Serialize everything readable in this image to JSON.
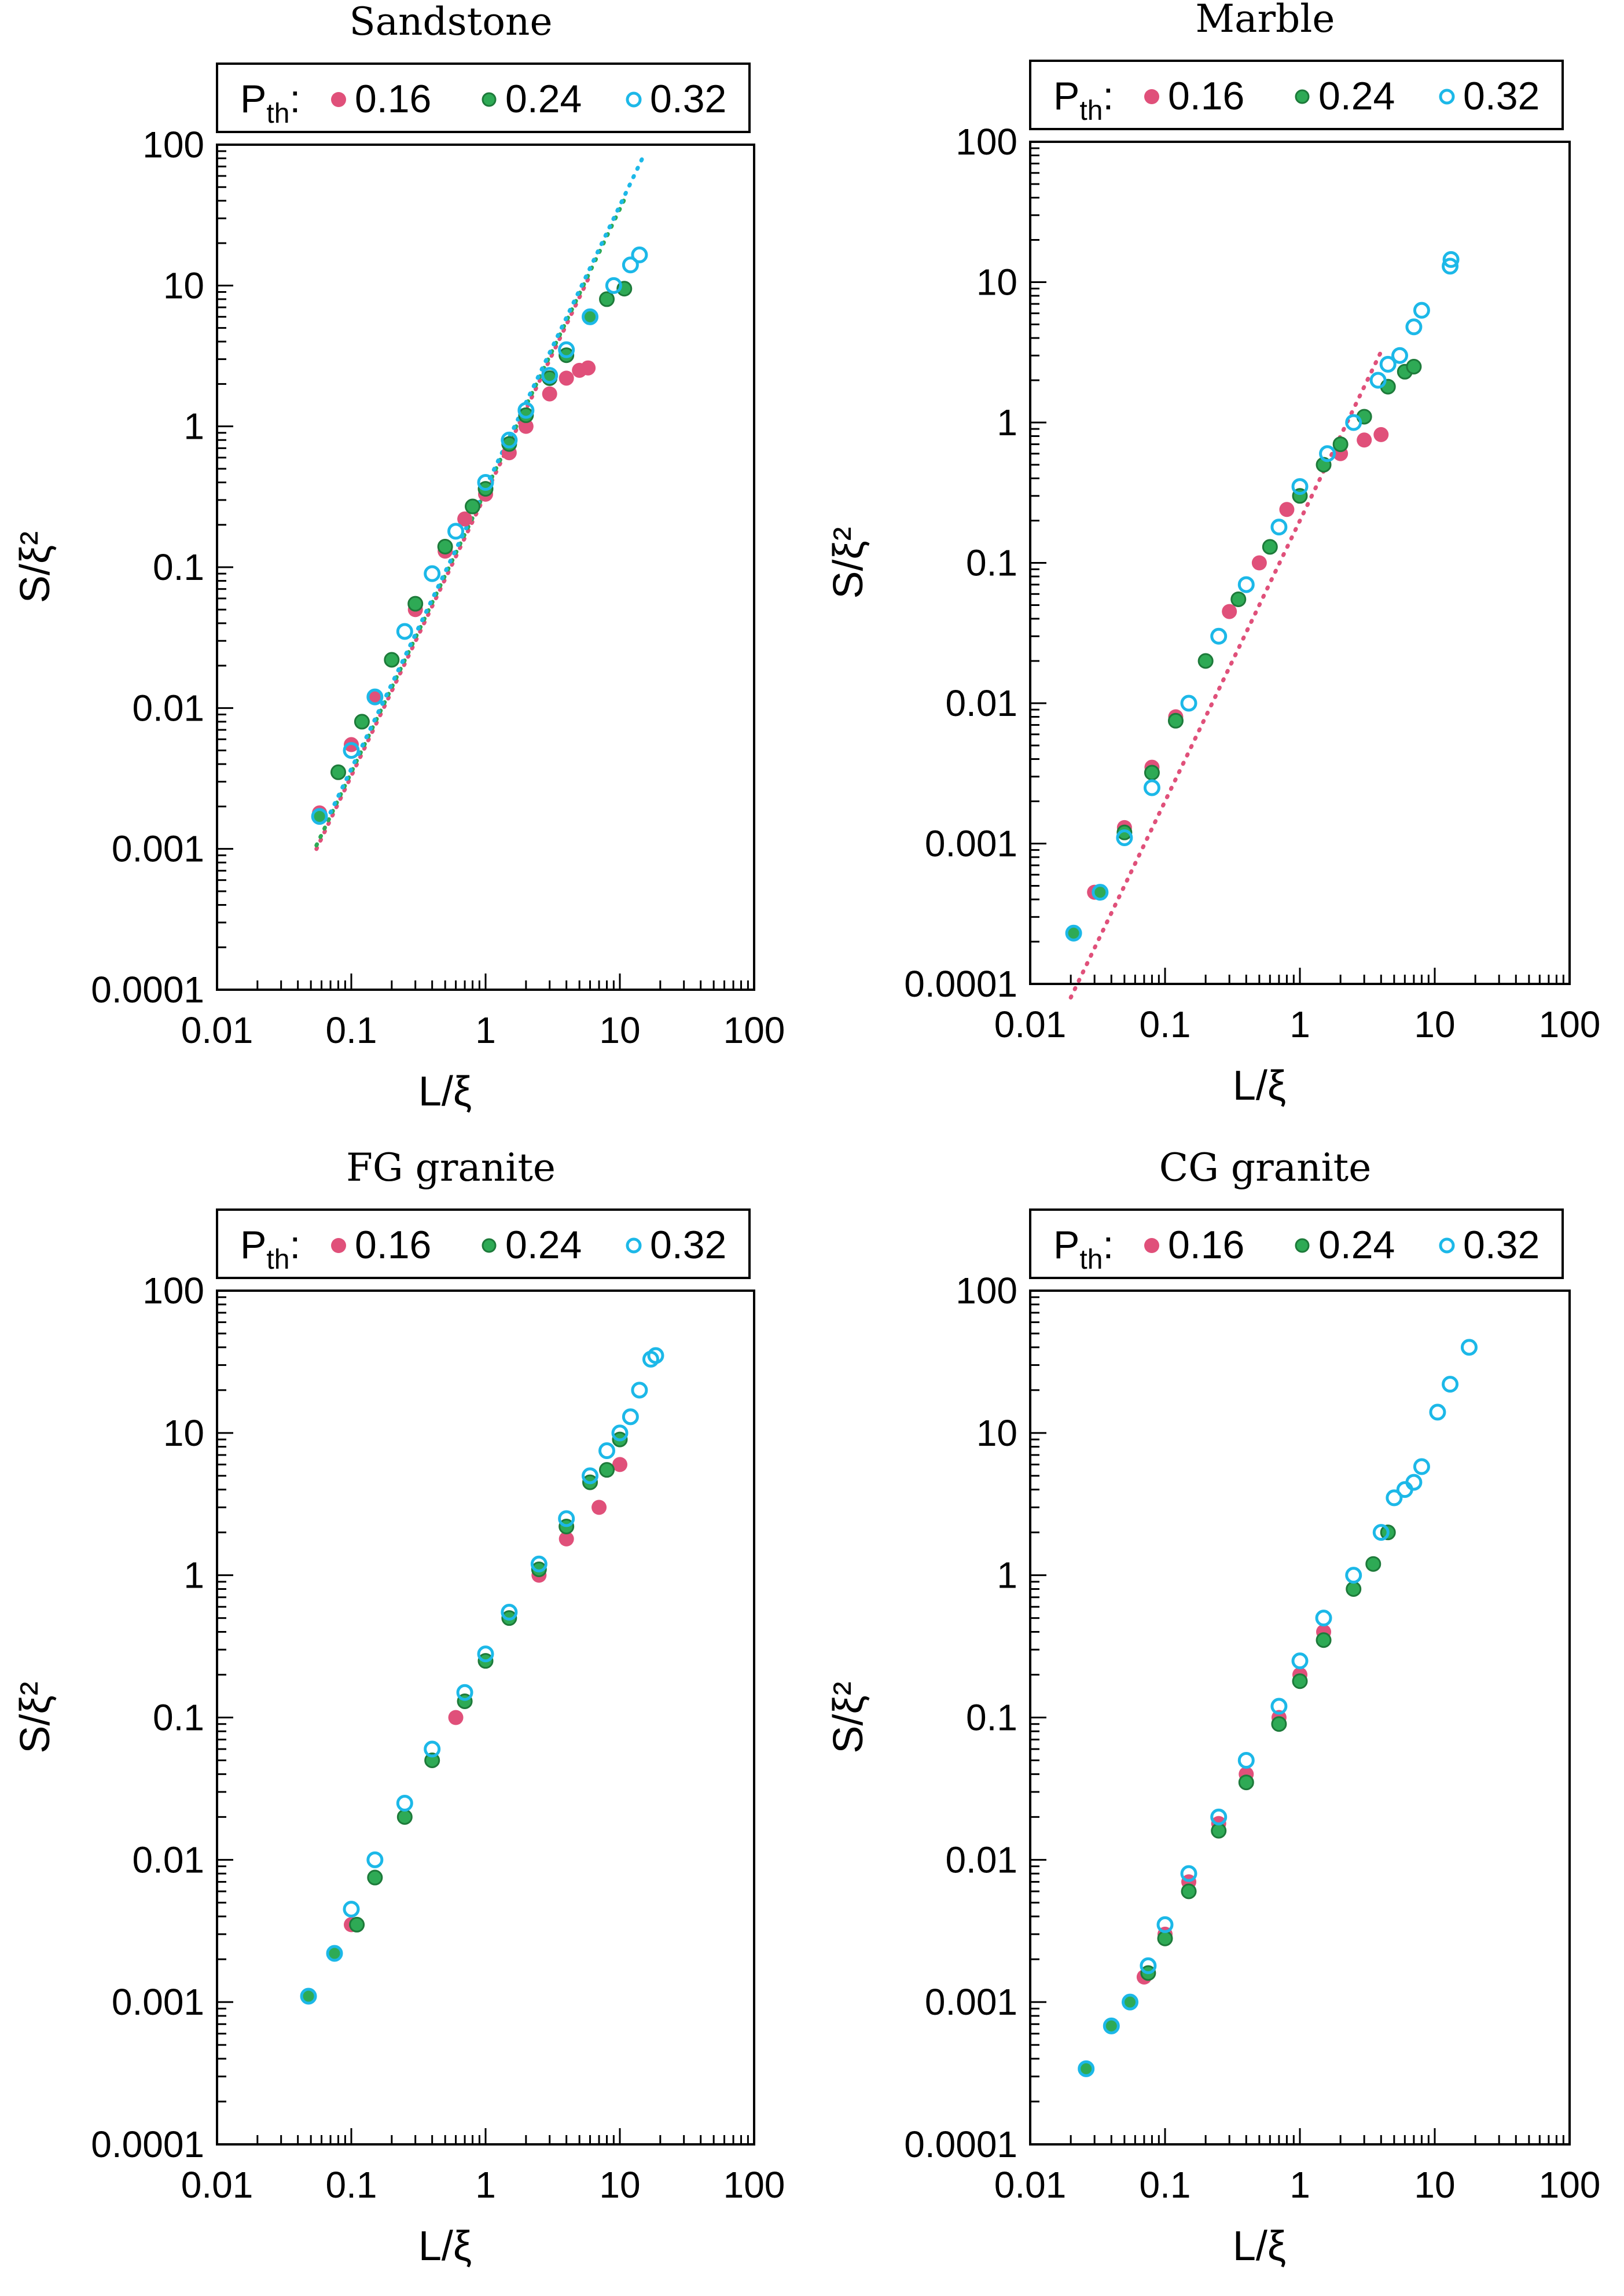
{
  "chart_data": [
    {
      "type": "scatter",
      "title": "Sandstone",
      "xlabel": "L/ξ",
      "ylabel": "S/ξ²",
      "xscale": "log",
      "yscale": "log",
      "xlim": [
        0.01,
        100
      ],
      "ylim": [
        0.0001,
        100
      ],
      "x_tick_labels": [
        "0.01",
        "0.1",
        "1",
        "10",
        "100"
      ],
      "y_tick_labels": [
        "0.0001",
        "0.001",
        "0.01",
        "0.1",
        "1",
        "10",
        "100"
      ],
      "legend": {
        "prefix": "P",
        "prefix_sub": "th",
        "prefix_suffix": ":",
        "entries": [
          "0.16",
          "0.24",
          "0.32"
        ],
        "position": "top"
      },
      "series": [
        {
          "name": "0.16",
          "color": "#e0507a",
          "marker": "filled",
          "fit_line": {
            "x0": 0.055,
            "x1": 6.0,
            "exponent": 2.0,
            "y_at_1": 0.33
          },
          "x": [
            0.058,
            0.08,
            0.1,
            0.15,
            0.2,
            0.3,
            0.5,
            0.7,
            1.0,
            1.5,
            2.0,
            3.0,
            4.0,
            5.0,
            5.8
          ],
          "y": [
            0.0018,
            0.0035,
            0.0055,
            0.012,
            0.022,
            0.05,
            0.13,
            0.22,
            0.33,
            0.65,
            1.0,
            1.7,
            2.2,
            2.5,
            2.6
          ]
        },
        {
          "name": "0.24",
          "color": "#2eaa55",
          "marker": "filled-edged",
          "fit_line": {
            "x0": 0.055,
            "x1": 11.0,
            "exponent": 2.0,
            "y_at_1": 0.35
          },
          "x": [
            0.058,
            0.08,
            0.12,
            0.2,
            0.3,
            0.5,
            0.8,
            1.0,
            1.5,
            2.0,
            3.0,
            4.0,
            6.0,
            8.0,
            10.8
          ],
          "y": [
            0.0017,
            0.0035,
            0.008,
            0.022,
            0.055,
            0.14,
            0.27,
            0.36,
            0.75,
            1.2,
            2.2,
            3.2,
            6.0,
            8.0,
            9.5
          ]
        },
        {
          "name": "0.32",
          "color": "#1cb8e8",
          "marker": "open",
          "fit_line": {
            "x0": 0.07,
            "x1": 15.0,
            "exponent": 2.0,
            "y_at_1": 0.37
          },
          "x": [
            0.058,
            0.1,
            0.15,
            0.25,
            0.4,
            0.6,
            1.0,
            1.5,
            2.0,
            3.0,
            4.0,
            6.0,
            9.0,
            12.0,
            14.0
          ],
          "y": [
            0.0017,
            0.005,
            0.012,
            0.035,
            0.09,
            0.18,
            0.4,
            0.8,
            1.3,
            2.3,
            3.5,
            6.0,
            10.0,
            14.0,
            16.5
          ]
        }
      ]
    },
    {
      "type": "scatter",
      "title": "Marble",
      "xlabel": "L/ξ",
      "ylabel": "S/ξ²",
      "xscale": "log",
      "yscale": "log",
      "xlim": [
        0.01,
        100
      ],
      "ylim": [
        0.0001,
        100
      ],
      "x_tick_labels": [
        "0.01",
        "0.1",
        "1",
        "10",
        "100"
      ],
      "y_tick_labels": [
        "0.0001",
        "0.001",
        "0.01",
        "0.1",
        "1",
        "10",
        "100"
      ],
      "legend": {
        "prefix": "P",
        "prefix_sub": "th",
        "prefix_suffix": ":",
        "entries": [
          "0.16",
          "0.24",
          "0.32"
        ],
        "position": "top"
      },
      "series": [
        {
          "name": "0.16",
          "color": "#e0507a",
          "marker": "filled",
          "fit_line": {
            "x0": 0.02,
            "x1": 4.0,
            "exponent": 2.0,
            "y_at_1": 0.2
          },
          "x": [
            0.021,
            0.03,
            0.05,
            0.08,
            0.12,
            0.2,
            0.3,
            0.5,
            0.8,
            1.0,
            1.5,
            2.0,
            3.0,
            4.0
          ],
          "y": [
            0.00023,
            0.00045,
            0.0013,
            0.0035,
            0.008,
            0.02,
            0.045,
            0.1,
            0.24,
            0.3,
            0.5,
            0.6,
            0.75,
            0.82
          ]
        },
        {
          "name": "0.24",
          "color": "#2eaa55",
          "marker": "filled-edged",
          "fit_line": null,
          "x": [
            0.021,
            0.033,
            0.05,
            0.08,
            0.12,
            0.2,
            0.35,
            0.6,
            1.0,
            1.5,
            2.0,
            3.0,
            4.5,
            6.0,
            7.0
          ],
          "y": [
            0.00023,
            0.00045,
            0.0012,
            0.0032,
            0.0075,
            0.02,
            0.055,
            0.13,
            0.3,
            0.5,
            0.7,
            1.1,
            1.8,
            2.3,
            2.5
          ]
        },
        {
          "name": "0.32",
          "color": "#1cb8e8",
          "marker": "open",
          "fit_line": null,
          "x": [
            0.021,
            0.033,
            0.05,
            0.08,
            0.15,
            0.25,
            0.4,
            0.7,
            1.0,
            1.6,
            2.5,
            3.8,
            4.5,
            5.5,
            7.0,
            8.0,
            13.0,
            13.2
          ],
          "y": [
            0.00023,
            0.00045,
            0.0011,
            0.0025,
            0.01,
            0.03,
            0.07,
            0.18,
            0.35,
            0.6,
            1.0,
            2.0,
            2.6,
            3.0,
            4.8,
            6.3,
            13.0,
            14.5
          ]
        }
      ]
    },
    {
      "type": "scatter",
      "title": "FG granite",
      "xlabel": "L/ξ",
      "ylabel": "S/ξ²",
      "xscale": "log",
      "yscale": "log",
      "xlim": [
        0.01,
        100
      ],
      "ylim": [
        0.0001,
        100
      ],
      "x_tick_labels": [
        "0.01",
        "0.1",
        "1",
        "10",
        "100"
      ],
      "y_tick_labels": [
        "0.0001",
        "0.001",
        "0.01",
        "0.1",
        "1",
        "10",
        "100"
      ],
      "legend": {
        "prefix": "P",
        "prefix_sub": "th",
        "prefix_suffix": ":",
        "entries": [
          "0.16",
          "0.24",
          "0.32"
        ],
        "position": "top"
      },
      "series": [
        {
          "name": "0.16",
          "color": "#e0507a",
          "marker": "filled",
          "fit_line": null,
          "x": [
            0.048,
            0.075,
            0.1,
            0.15,
            0.25,
            0.4,
            0.6,
            1.0,
            1.5,
            2.5,
            4.0,
            7.0,
            10.0
          ],
          "y": [
            0.0011,
            0.0022,
            0.0035,
            0.0075,
            0.02,
            0.05,
            0.1,
            0.25,
            0.5,
            1.0,
            1.8,
            3.0,
            6.0
          ]
        },
        {
          "name": "0.24",
          "color": "#2eaa55",
          "marker": "filled-edged",
          "fit_line": null,
          "x": [
            0.048,
            0.075,
            0.11,
            0.15,
            0.25,
            0.4,
            0.7,
            1.0,
            1.5,
            2.5,
            4.0,
            6.0,
            8.0,
            10.0
          ],
          "y": [
            0.0011,
            0.0022,
            0.0035,
            0.0075,
            0.02,
            0.05,
            0.13,
            0.25,
            0.5,
            1.1,
            2.2,
            4.5,
            5.5,
            9.0
          ]
        },
        {
          "name": "0.32",
          "color": "#1cb8e8",
          "marker": "open",
          "fit_line": null,
          "x": [
            0.048,
            0.075,
            0.1,
            0.15,
            0.25,
            0.4,
            0.7,
            1.0,
            1.5,
            2.5,
            4.0,
            6.0,
            8.0,
            10.0,
            12.0,
            14.0,
            17.0,
            18.5
          ],
          "y": [
            0.0011,
            0.0022,
            0.0045,
            0.01,
            0.025,
            0.06,
            0.15,
            0.28,
            0.55,
            1.2,
            2.5,
            5.0,
            7.5,
            10.0,
            13.0,
            20.0,
            33.0,
            35.0
          ]
        }
      ]
    },
    {
      "type": "scatter",
      "title": "CG granite",
      "xlabel": "L/ξ",
      "ylabel": "S/ξ²",
      "xscale": "log",
      "yscale": "log",
      "xlim": [
        0.01,
        100
      ],
      "ylim": [
        0.0001,
        100
      ],
      "x_tick_labels": [
        "0.01",
        "0.1",
        "1",
        "10",
        "100"
      ],
      "y_tick_labels": [
        "0.0001",
        "0.001",
        "0.01",
        "0.1",
        "1",
        "10",
        "100"
      ],
      "legend": {
        "prefix": "P",
        "prefix_sub": "th",
        "prefix_suffix": ":",
        "entries": [
          "0.16",
          "0.24",
          "0.32"
        ],
        "position": "top"
      },
      "series": [
        {
          "name": "0.16",
          "color": "#e0507a",
          "marker": "filled",
          "fit_line": null,
          "x": [
            0.026,
            0.04,
            0.055,
            0.07,
            0.1,
            0.15,
            0.25,
            0.4,
            0.7,
            1.0,
            1.5,
            2.5,
            3.5
          ],
          "y": [
            0.00034,
            0.00068,
            0.001,
            0.0015,
            0.003,
            0.007,
            0.018,
            0.04,
            0.1,
            0.2,
            0.4,
            0.8,
            1.2
          ]
        },
        {
          "name": "0.24",
          "color": "#2eaa55",
          "marker": "filled-edged",
          "fit_line": null,
          "x": [
            0.026,
            0.04,
            0.055,
            0.075,
            0.1,
            0.15,
            0.25,
            0.4,
            0.7,
            1.0,
            1.5,
            2.5,
            3.5,
            4.5
          ],
          "y": [
            0.00034,
            0.00068,
            0.001,
            0.0016,
            0.0028,
            0.006,
            0.016,
            0.035,
            0.09,
            0.18,
            0.35,
            0.8,
            1.2,
            2.0
          ]
        },
        {
          "name": "0.32",
          "color": "#1cb8e8",
          "marker": "open",
          "fit_line": null,
          "x": [
            0.026,
            0.04,
            0.055,
            0.075,
            0.1,
            0.15,
            0.25,
            0.4,
            0.7,
            1.0,
            1.5,
            2.5,
            4.0,
            5.0,
            6.0,
            7.0,
            8.0,
            10.5,
            13.0,
            18.0
          ],
          "y": [
            0.00034,
            0.00068,
            0.001,
            0.0018,
            0.0035,
            0.008,
            0.02,
            0.05,
            0.12,
            0.25,
            0.5,
            1.0,
            2.0,
            3.5,
            4.0,
            4.5,
            5.8,
            14.0,
            22.0,
            40.0
          ]
        }
      ]
    }
  ]
}
